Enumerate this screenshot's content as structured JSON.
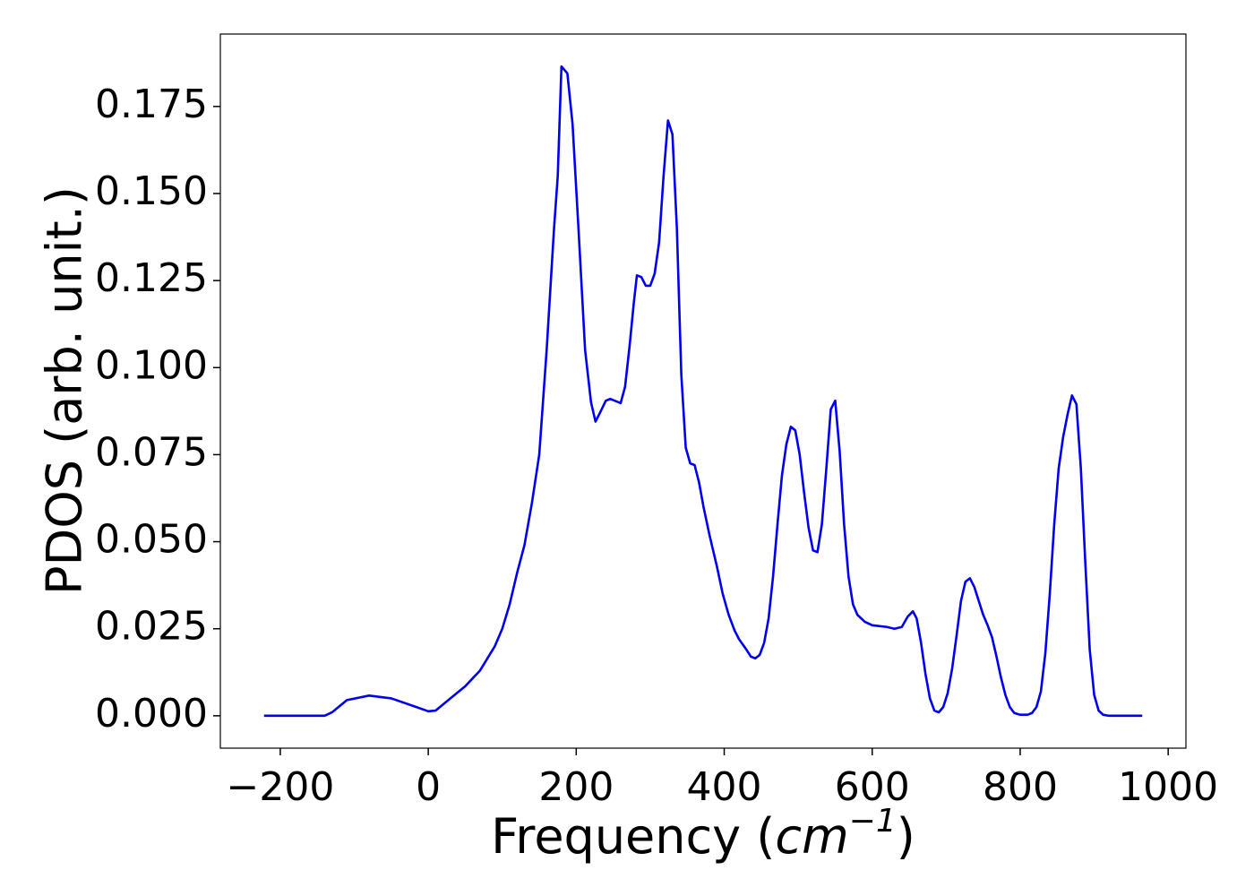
{
  "chart_data": {
    "type": "line",
    "xlabel": [
      "Frequency (",
      "cm",
      "−1",
      ")"
    ],
    "ylabel": "PDOS (arb. unit.)",
    "xlim": [
      -281,
      1024
    ],
    "ylim": [
      -0.0093,
      0.1958
    ],
    "xticks": [
      {
        "value": -200,
        "label": "−200"
      },
      0,
      200,
      400,
      600,
      800,
      1000
    ],
    "yticks": [
      {
        "value": 0,
        "label": "0.000"
      },
      {
        "value": 0.025,
        "label": "0.025"
      },
      {
        "value": 0.05,
        "label": "0.050"
      },
      {
        "value": 0.075,
        "label": "0.075"
      },
      {
        "value": 0.1,
        "label": "0.100"
      },
      {
        "value": 0.125,
        "label": "0.125"
      },
      {
        "value": 0.15,
        "label": "0.150"
      },
      {
        "value": 0.175,
        "label": "0.175"
      }
    ],
    "grid": false,
    "series": [
      {
        "name": "PDOS",
        "color": "#0000ee",
        "x": [
          -222,
          -140,
          -130,
          -110,
          -80,
          -50,
          -20,
          0,
          10,
          30,
          50,
          70,
          90,
          100,
          110,
          120,
          130,
          140,
          150,
          160,
          170,
          175,
          180,
          188,
          195,
          203,
          212,
          220,
          226,
          232,
          240,
          246,
          252,
          260,
          266,
          272,
          278,
          282,
          288,
          294,
          300,
          306,
          312,
          318,
          324,
          330,
          336,
          342,
          348,
          354,
          360,
          366,
          372,
          380,
          390,
          398,
          406,
          414,
          420,
          430,
          436,
          442,
          448,
          454,
          460,
          466,
          472,
          478,
          484,
          490,
          496,
          502,
          508,
          514,
          520,
          526,
          532,
          538,
          544,
          550,
          556,
          562,
          568,
          574,
          580,
          590,
          600,
          620,
          630,
          640,
          648,
          655,
          660,
          666,
          672,
          678,
          684,
          690,
          696,
          702,
          708,
          714,
          720,
          726,
          732,
          738,
          744,
          750,
          756,
          762,
          768,
          774,
          780,
          786,
          792,
          800,
          810,
          816,
          822,
          828,
          834,
          840,
          846,
          852,
          858,
          864,
          870,
          876,
          882,
          888,
          894,
          900,
          906,
          912,
          920,
          965
        ],
        "values": [
          0,
          0,
          0.001,
          0.0045,
          0.0058,
          0.005,
          0.0028,
          0.0013,
          0.0015,
          0.005,
          0.0085,
          0.013,
          0.02,
          0.025,
          0.032,
          0.041,
          0.049,
          0.061,
          0.075,
          0.105,
          0.14,
          0.155,
          0.1865,
          0.1845,
          0.17,
          0.14,
          0.105,
          0.09,
          0.0845,
          0.087,
          0.0905,
          0.091,
          0.0905,
          0.0898,
          0.0945,
          0.106,
          0.119,
          0.1265,
          0.126,
          0.1235,
          0.1235,
          0.127,
          0.136,
          0.155,
          0.171,
          0.167,
          0.14,
          0.098,
          0.077,
          0.0725,
          0.072,
          0.067,
          0.06,
          0.052,
          0.043,
          0.035,
          0.029,
          0.0245,
          0.022,
          0.019,
          0.017,
          0.0165,
          0.0175,
          0.021,
          0.028,
          0.04,
          0.055,
          0.069,
          0.078,
          0.083,
          0.082,
          0.075,
          0.064,
          0.054,
          0.0475,
          0.047,
          0.055,
          0.071,
          0.088,
          0.0905,
          0.076,
          0.055,
          0.04,
          0.032,
          0.029,
          0.027,
          0.026,
          0.0255,
          0.025,
          0.0255,
          0.0285,
          0.03,
          0.028,
          0.021,
          0.012,
          0.005,
          0.0015,
          0.001,
          0.0025,
          0.0065,
          0.0135,
          0.023,
          0.033,
          0.0385,
          0.0395,
          0.037,
          0.033,
          0.029,
          0.026,
          0.0225,
          0.017,
          0.011,
          0.006,
          0.0025,
          0.0008,
          0.0003,
          0.0003,
          0.0008,
          0.0025,
          0.007,
          0.018,
          0.035,
          0.055,
          0.071,
          0.08,
          0.0865,
          0.092,
          0.0895,
          0.071,
          0.044,
          0.019,
          0.006,
          0.0015,
          0.0003,
          0,
          0
        ]
      }
    ]
  }
}
